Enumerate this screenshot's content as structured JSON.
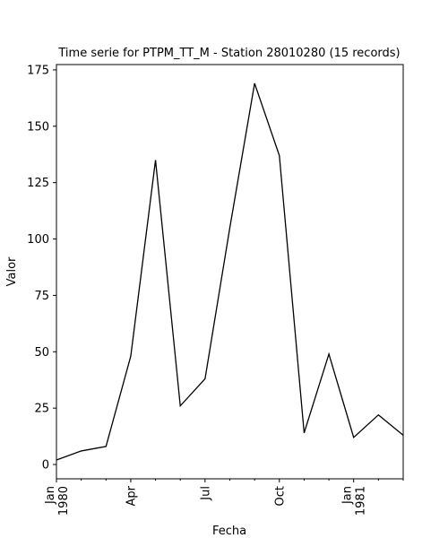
{
  "chart_data": {
    "type": "line",
    "title": "Time serie for PTPM_TT_M - Station 28010280 (15 records)",
    "xlabel": "Fecha",
    "ylabel": "Valor",
    "x": [
      "1980-01",
      "1980-02",
      "1980-03",
      "1980-04",
      "1980-05",
      "1980-06",
      "1980-07",
      "1980-08",
      "1980-09",
      "1980-10",
      "1980-11",
      "1980-12",
      "1981-01",
      "1981-02",
      "1981-03"
    ],
    "series": [
      {
        "values": [
          2,
          6,
          8,
          48,
          135,
          26,
          38,
          105,
          169,
          137,
          14,
          49,
          12,
          22,
          13
        ]
      }
    ],
    "xlim": [
      "1980-01",
      "1981-03"
    ],
    "ylim": [
      -6.35,
      177.35
    ],
    "yticks": [
      0,
      25,
      50,
      75,
      100,
      125,
      150,
      175
    ],
    "xticks_major": [
      {
        "date": "1980-01",
        "label": [
          "Jan",
          "1980"
        ]
      },
      {
        "date": "1980-04",
        "label": [
          "Apr"
        ]
      },
      {
        "date": "1980-07",
        "label": [
          "Jul"
        ]
      },
      {
        "date": "1980-10",
        "label": [
          "Oct"
        ]
      },
      {
        "date": "1981-01",
        "label": [
          "Jan",
          "1981"
        ]
      }
    ],
    "xticks_minor": [
      "1980-02",
      "1980-03",
      "1980-05",
      "1980-06",
      "1980-08",
      "1980-09",
      "1980-11",
      "1980-12",
      "1981-02",
      "1981-03"
    ],
    "grid": false,
    "legend": "none",
    "line_color": "#000000"
  }
}
